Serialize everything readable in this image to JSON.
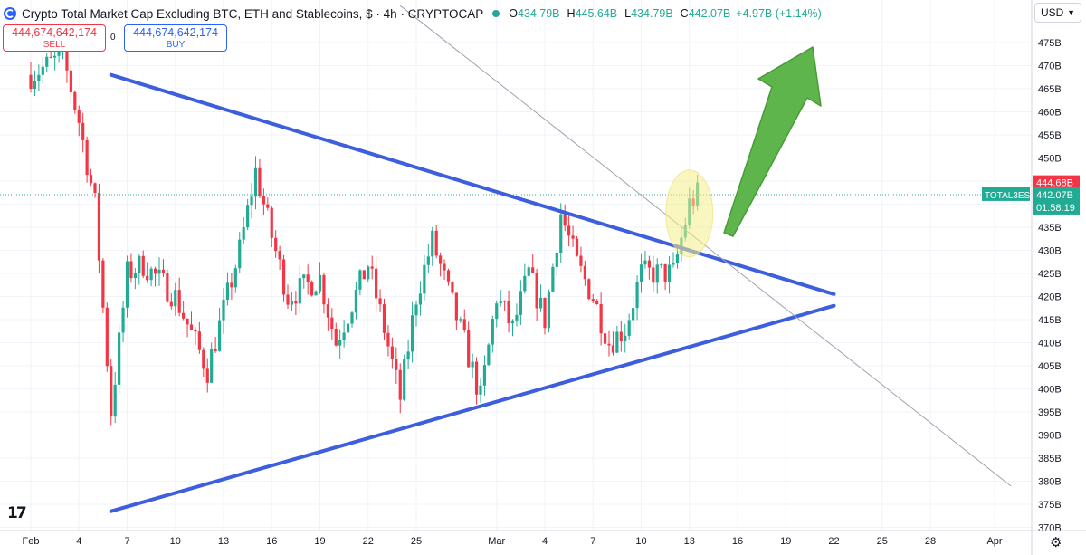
{
  "header": {
    "title": "Crypto Total Market Cap Excluding BTC, ETH and Stablecoins, $ · 4h · CRYPTOCAP",
    "ohlc": [
      {
        "key": "O",
        "value": "434.79B"
      },
      {
        "key": "H",
        "value": "445.64B"
      },
      {
        "key": "L",
        "value": "434.79B"
      },
      {
        "key": "C",
        "value": "442.07B"
      }
    ],
    "change": "+4.97B (+1.14%)"
  },
  "trade": {
    "sell_price": "444,674,642,174",
    "sell_label": "SELL",
    "buy_price": "444,674,642,174",
    "buy_label": "BUY",
    "spread": "0"
  },
  "currency": "USD",
  "icons": [
    "tradingview-logo-icon",
    "gear-icon",
    "chevron-down-icon",
    "symbol-logo-icon"
  ],
  "colors": {
    "up": "#22ab94",
    "down": "#f23645",
    "trendline": "#3d5fdd",
    "arrow": "#5eb54c",
    "highlight": "#f6ee8a",
    "price_label": "#22ab94",
    "high_label": "#f23645"
  },
  "chart_data": {
    "type": "candlestick",
    "title": "Crypto Total Market Cap Excluding BTC, ETH and Stablecoins, $ · 4h · CRYPTOCAP",
    "y_unit": "B",
    "ylim": [
      368,
      483
    ],
    "grid": true,
    "y_ticks": [
      "475B",
      "470B",
      "465B",
      "460B",
      "455B",
      "450B",
      "445B",
      "440B",
      "435B",
      "430B",
      "425B",
      "420B",
      "415B",
      "410B",
      "405B",
      "400B",
      "395B",
      "390B",
      "385B",
      "380B",
      "375B",
      "370B"
    ],
    "x_ticks": [
      "Feb",
      "4",
      "7",
      "10",
      "13",
      "16",
      "19",
      "22",
      "25",
      "Mar",
      "4",
      "7",
      "10",
      "13",
      "16",
      "19",
      "22",
      "25",
      "28",
      "Apr"
    ],
    "close_trace": [
      [
        "Feb 1",
        468
      ],
      [
        "Feb 3",
        472
      ],
      [
        "Feb 4",
        458
      ],
      [
        "Feb 5",
        440
      ],
      [
        "Feb 6",
        395
      ],
      [
        "Feb 7",
        425
      ],
      [
        "Feb 8",
        427
      ],
      [
        "Feb 10",
        420
      ],
      [
        "Feb 12",
        404
      ],
      [
        "Feb 14",
        430
      ],
      [
        "Feb 15",
        447
      ],
      [
        "Feb 16",
        433
      ],
      [
        "Feb 17",
        420
      ],
      [
        "Feb 19",
        424
      ],
      [
        "Feb 20",
        410
      ],
      [
        "Feb 22",
        427
      ],
      [
        "Feb 23",
        413
      ],
      [
        "Feb 24",
        398
      ],
      [
        "Feb 25",
        420
      ],
      [
        "Feb 26",
        432
      ],
      [
        "Feb 28",
        410
      ],
      [
        "Feb 29",
        398
      ],
      [
        "Mar 1",
        420
      ],
      [
        "Mar 2",
        413
      ],
      [
        "Mar 3",
        425
      ],
      [
        "Mar 4",
        415
      ],
      [
        "Mar 5",
        438
      ],
      [
        "Mar 6",
        427
      ],
      [
        "Mar 7",
        420
      ],
      [
        "Mar 8",
        410
      ],
      [
        "Mar 9",
        413
      ],
      [
        "Mar 10",
        425
      ],
      [
        "Mar 11",
        425
      ],
      [
        "Mar 12",
        425
      ],
      [
        "Mar 13",
        440
      ],
      [
        "Mar 13.5",
        442.07
      ]
    ],
    "last_price_label": {
      "symbol": "TOTAL3ES",
      "price": "442.07B",
      "countdown": "01:58:19"
    },
    "high_price_label": "444.68B",
    "annotations": [
      {
        "type": "trendline",
        "name": "upper-resistance",
        "from": [
          "Feb 6",
          468
        ],
        "to": [
          "Mar 22",
          420.5
        ]
      },
      {
        "type": "trendline",
        "name": "lower-support",
        "from": [
          "Feb 6",
          373.5
        ],
        "to": [
          "Mar 22",
          418
        ]
      },
      {
        "type": "trendline",
        "name": "thin-gray-line",
        "from": [
          "Feb 24",
          483
        ],
        "to": [
          "Apr 2",
          379
        ]
      },
      {
        "type": "ellipse",
        "name": "breakout-highlight",
        "center": [
          "Mar 13",
          438
        ]
      },
      {
        "type": "arrow",
        "name": "bullish-arrow",
        "direction": "up-right"
      }
    ]
  }
}
